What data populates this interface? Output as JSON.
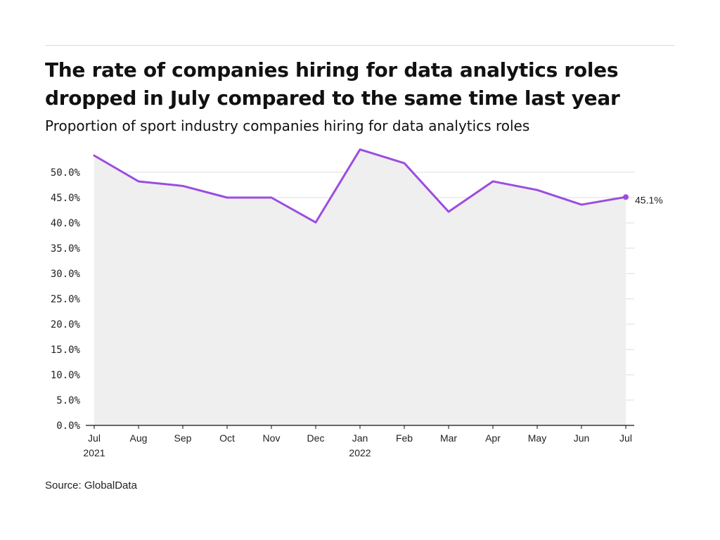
{
  "header": {
    "title_line1": "The rate of companies hiring for data analytics roles",
    "title_line2": "dropped in July compared to the same time last year",
    "subtitle": "Proportion of sport industry companies hiring for data analytics roles"
  },
  "footer": {
    "source": "Source: GlobalData"
  },
  "colors": {
    "line": "#9b4de0",
    "area": "#efefef",
    "grid": "#dddddd",
    "axis": "#111111"
  },
  "chart_data": {
    "type": "area",
    "title": "The rate of companies hiring for data analytics roles dropped in July compared to the same time last year",
    "subtitle": "Proportion of sport industry companies hiring for data analytics roles",
    "categories": [
      "Jul",
      "Aug",
      "Sep",
      "Oct",
      "Nov",
      "Dec",
      "Jan",
      "Feb",
      "Mar",
      "Apr",
      "May",
      "Jun",
      "Jul"
    ],
    "year_labels": [
      "2021",
      "",
      "",
      "",
      "",
      "",
      "2022",
      "",
      "",
      "",
      "",
      "",
      ""
    ],
    "values": [
      53.3,
      48.2,
      47.3,
      45.0,
      45.0,
      40.1,
      54.5,
      51.8,
      42.2,
      48.2,
      46.5,
      43.6,
      45.1
    ],
    "y_ticks": [
      0,
      5,
      10,
      15,
      20,
      25,
      30,
      35,
      40,
      45,
      50
    ],
    "y_tick_labels": [
      "0.0%",
      "5.0%",
      "10.0%",
      "15.0%",
      "20.0%",
      "25.0%",
      "30.0%",
      "35.0%",
      "40.0%",
      "45.0%",
      "50.0%"
    ],
    "ylim": [
      0,
      55
    ],
    "last_value_label": "45.1%",
    "xlabel": "",
    "ylabel": "",
    "grid": true,
    "legend": "none"
  }
}
